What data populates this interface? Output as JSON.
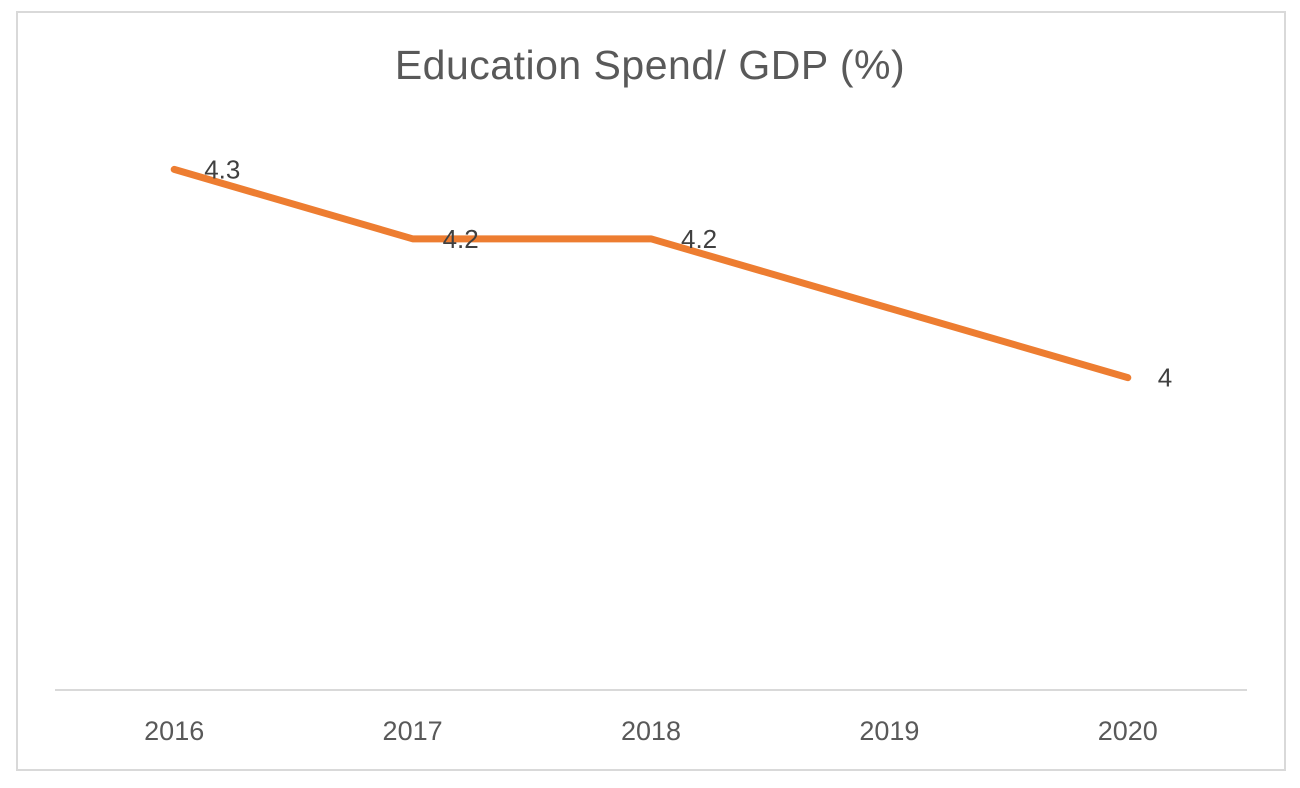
{
  "chart_data": {
    "type": "line",
    "title": "Education Spend/ GDP (%)",
    "xlabel": "",
    "ylabel": "",
    "categories": [
      "2016",
      "2017",
      "2018",
      "2019",
      "2020"
    ],
    "series": [
      {
        "values": [
          4.3,
          4.2,
          4.2,
          4.1,
          4.0
        ],
        "data_labels": [
          "4.3",
          "4.2",
          "4.2",
          "",
          "4"
        ],
        "color": "#ED7D31"
      }
    ],
    "ylim": [
      3.55,
      4.4
    ],
    "grid": false,
    "legend": "none",
    "colors": {
      "line": "#ED7D31",
      "axis": "#d9d9d9",
      "text": "#595959",
      "label": "#404040",
      "border": "#d9d9d9"
    }
  }
}
